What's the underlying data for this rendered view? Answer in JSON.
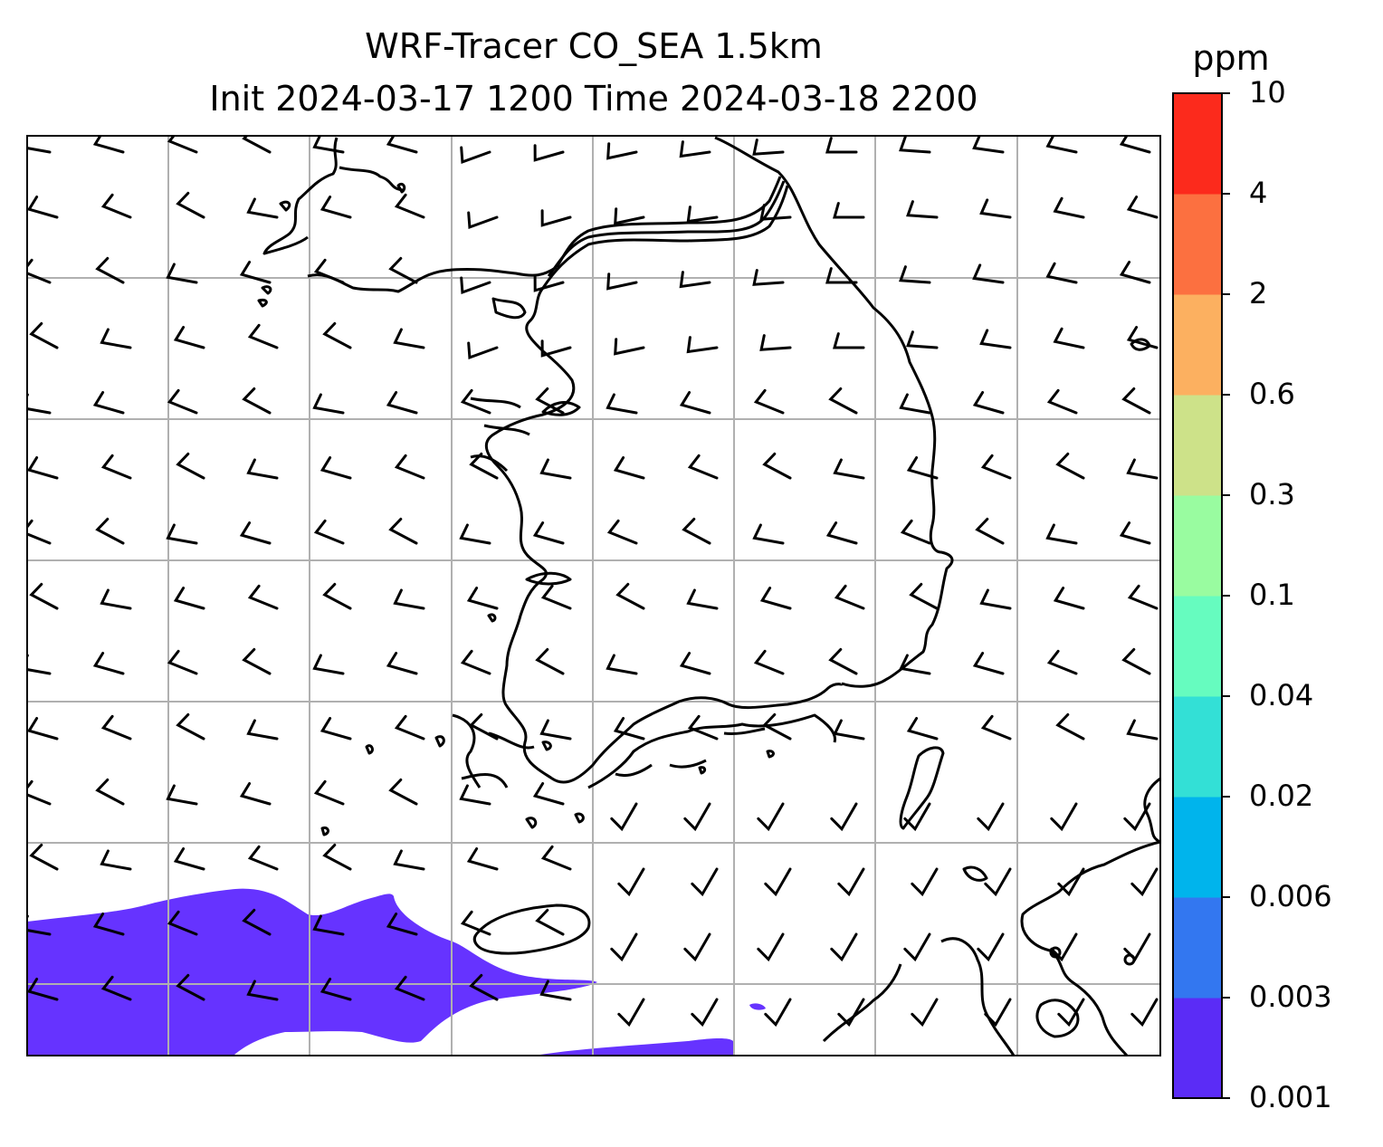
{
  "title": {
    "line1": "WRF-Tracer CO_SEA 1.5km",
    "line2": "Init 2024-03-17 1200 Time 2024-03-18 2200"
  },
  "colorbar": {
    "unit": "ppm",
    "levels": [
      "0.001",
      "0.003",
      "0.006",
      "0.02",
      "0.04",
      "0.1",
      "0.3",
      "0.6",
      "2",
      "4",
      "10"
    ],
    "colors": [
      "#5b2cf6",
      "#3377f0",
      "#00b4ec",
      "#33e0d6",
      "#66fcbf",
      "#99fca0",
      "#cde289",
      "#fcb060",
      "#fc7040",
      "#fc2a1c"
    ]
  },
  "map": {
    "plume_color": "#6633ff",
    "coastline_color": "#000000",
    "gridline_color": "#b0b0b0",
    "wind_barbs": "black"
  }
}
